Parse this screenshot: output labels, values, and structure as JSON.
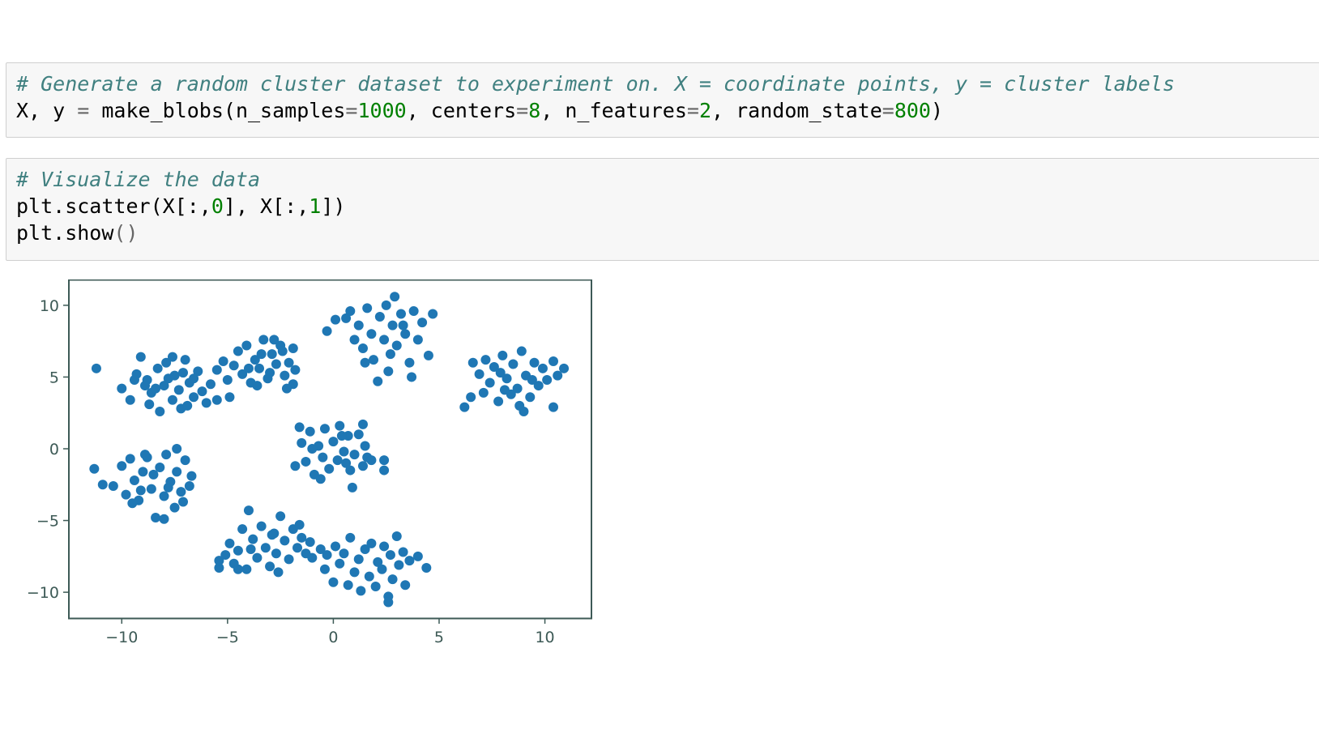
{
  "cells": [
    {
      "lines": [
        [
          {
            "t": "# Generate a random cluster dataset to experiment on. X = coordinate points, y = cluster labels",
            "c": "comment"
          }
        ],
        [
          {
            "t": "X, y ",
            "c": "kw"
          },
          {
            "t": "=",
            "c": "op"
          },
          {
            "t": " make_blobs(n_samples",
            "c": "kw"
          },
          {
            "t": "=",
            "c": "op"
          },
          {
            "t": "1000",
            "c": "num"
          },
          {
            "t": ", centers",
            "c": "kw"
          },
          {
            "t": "=",
            "c": "op"
          },
          {
            "t": "8",
            "c": "num"
          },
          {
            "t": ", n_features",
            "c": "kw"
          },
          {
            "t": "=",
            "c": "op"
          },
          {
            "t": "2",
            "c": "num"
          },
          {
            "t": ", random_state",
            "c": "kw"
          },
          {
            "t": "=",
            "c": "op"
          },
          {
            "t": "800",
            "c": "num"
          },
          {
            "t": ")",
            "c": "kw"
          }
        ]
      ]
    },
    {
      "lines": [
        [
          {
            "t": "# Visualize the data",
            "c": "comment"
          }
        ],
        [
          {
            "t": "plt.scatter(X[:,",
            "c": "kw"
          },
          {
            "t": "0",
            "c": "num"
          },
          {
            "t": "], X[:,",
            "c": "kw"
          },
          {
            "t": "1",
            "c": "num"
          },
          {
            "t": "])",
            "c": "kw"
          }
        ],
        [
          {
            "t": "plt.show",
            "c": "kw"
          },
          {
            "t": "()",
            "c": "op"
          }
        ]
      ]
    }
  ],
  "chart_data": {
    "type": "scatter",
    "xlim": [
      -12.5,
      12.2
    ],
    "ylim": [
      -11.8,
      11.8
    ],
    "xticks": [
      -10,
      -5,
      0,
      5,
      10
    ],
    "yticks": [
      10,
      5,
      0,
      -5,
      -10
    ],
    "xtick_labels": [
      "−10",
      "−5",
      "0",
      "5",
      "10"
    ],
    "ytick_labels": [
      "10",
      "5",
      "0",
      "−5",
      "−10"
    ],
    "marker_color": "#1f77b4",
    "grid": false,
    "series": [
      {
        "points": [
          [
            -11.2,
            5.6
          ],
          [
            -10.0,
            4.2
          ],
          [
            -9.6,
            3.4
          ],
          [
            -9.3,
            5.2
          ],
          [
            -9.1,
            6.4
          ],
          [
            -8.8,
            4.8
          ],
          [
            -8.6,
            3.9
          ],
          [
            -8.3,
            5.6
          ],
          [
            -8.2,
            2.6
          ],
          [
            -8.0,
            4.4
          ],
          [
            -7.9,
            6.0
          ],
          [
            -7.6,
            3.4
          ],
          [
            -7.5,
            5.1
          ],
          [
            -7.3,
            4.1
          ],
          [
            -7.2,
            2.8
          ],
          [
            -7.0,
            6.2
          ],
          [
            -6.8,
            4.6
          ],
          [
            -6.6,
            3.6
          ],
          [
            -6.4,
            5.4
          ],
          [
            -6.2,
            4.0
          ],
          [
            -6.0,
            3.2
          ],
          [
            -7.8,
            4.9
          ],
          [
            -8.9,
            4.4
          ],
          [
            -7.1,
            5.3
          ],
          [
            -6.6,
            4.9
          ],
          [
            -9.4,
            4.8
          ],
          [
            -8.4,
            4.2
          ],
          [
            -6.9,
            3.0
          ],
          [
            -7.6,
            6.4
          ],
          [
            -8.7,
            3.1
          ],
          [
            -5.8,
            4.5
          ],
          [
            -5.5,
            5.5
          ],
          [
            -5.2,
            6.1
          ],
          [
            -5.0,
            4.8
          ],
          [
            -4.7,
            5.8
          ],
          [
            -4.5,
            6.8
          ],
          [
            -4.3,
            5.2
          ],
          [
            -4.1,
            7.2
          ],
          [
            -3.9,
            4.6
          ],
          [
            -3.7,
            6.2
          ],
          [
            -3.5,
            5.6
          ],
          [
            -3.3,
            7.6
          ],
          [
            -3.1,
            4.9
          ],
          [
            -2.9,
            6.6
          ],
          [
            -2.7,
            5.9
          ],
          [
            -2.5,
            7.2
          ],
          [
            -2.3,
            5.1
          ],
          [
            -2.1,
            6.0
          ],
          [
            -1.9,
            4.5
          ],
          [
            -1.8,
            5.5
          ],
          [
            -2.2,
            4.2
          ],
          [
            -3.6,
            4.4
          ],
          [
            -4.9,
            3.6
          ],
          [
            -5.5,
            3.4
          ],
          [
            -2.4,
            6.8
          ],
          [
            -3.0,
            5.3
          ],
          [
            -4.0,
            5.6
          ],
          [
            -2.8,
            7.6
          ],
          [
            -1.9,
            7.0
          ],
          [
            -3.4,
            6.6
          ]
        ]
      },
      {
        "points": [
          [
            -11.3,
            -1.4
          ],
          [
            -10.9,
            -2.5
          ],
          [
            -10.4,
            -2.6
          ],
          [
            -10.0,
            -1.2
          ],
          [
            -9.8,
            -3.2
          ],
          [
            -9.6,
            -0.7
          ],
          [
            -9.4,
            -2.2
          ],
          [
            -9.2,
            -3.6
          ],
          [
            -9.0,
            -1.6
          ],
          [
            -8.8,
            -0.6
          ],
          [
            -8.6,
            -2.8
          ],
          [
            -8.4,
            -4.8
          ],
          [
            -8.2,
            -1.3
          ],
          [
            -8.0,
            -3.3
          ],
          [
            -7.9,
            -0.4
          ],
          [
            -7.7,
            -2.3
          ],
          [
            -7.5,
            -4.1
          ],
          [
            -7.4,
            -1.6
          ],
          [
            -7.2,
            -3.0
          ],
          [
            -7.0,
            -0.8
          ],
          [
            -6.8,
            -2.6
          ],
          [
            -6.7,
            -1.9
          ],
          [
            -7.4,
            0.0
          ],
          [
            -8.0,
            -4.9
          ],
          [
            -9.1,
            -2.9
          ],
          [
            -8.5,
            -1.8
          ],
          [
            -7.8,
            -2.7
          ],
          [
            -9.5,
            -3.8
          ],
          [
            -8.9,
            -0.4
          ],
          [
            -7.1,
            -3.7
          ]
        ]
      },
      {
        "points": [
          [
            -1.6,
            1.5
          ],
          [
            -1.8,
            -1.2
          ],
          [
            -1.5,
            0.4
          ],
          [
            -1.3,
            -0.9
          ],
          [
            -1.1,
            1.2
          ],
          [
            -0.9,
            -1.8
          ],
          [
            -0.7,
            0.2
          ],
          [
            -0.5,
            -0.6
          ],
          [
            -0.4,
            1.4
          ],
          [
            -0.2,
            -1.4
          ],
          [
            0.0,
            0.5
          ],
          [
            0.2,
            -0.8
          ],
          [
            0.3,
            1.6
          ],
          [
            0.5,
            -0.2
          ],
          [
            0.7,
            0.9
          ],
          [
            0.8,
            -1.5
          ],
          [
            1.0,
            -0.4
          ],
          [
            1.2,
            1.0
          ],
          [
            1.4,
            -1.2
          ],
          [
            1.5,
            0.2
          ],
          [
            1.6,
            -0.6
          ],
          [
            0.9,
            -2.7
          ],
          [
            2.4,
            -1.5
          ],
          [
            2.4,
            -0.8
          ],
          [
            1.4,
            1.7
          ],
          [
            -0.6,
            -2.1
          ],
          [
            0.4,
            0.9
          ],
          [
            -1.0,
            0.0
          ],
          [
            0.6,
            -1.0
          ],
          [
            1.8,
            -0.8
          ]
        ]
      },
      {
        "points": [
          [
            -0.3,
            8.2
          ],
          [
            0.1,
            9.0
          ],
          [
            0.6,
            9.1
          ],
          [
            0.8,
            9.6
          ],
          [
            1.0,
            7.6
          ],
          [
            1.2,
            8.6
          ],
          [
            1.4,
            7.0
          ],
          [
            1.6,
            9.8
          ],
          [
            1.8,
            8.0
          ],
          [
            1.9,
            6.2
          ],
          [
            2.1,
            4.7
          ],
          [
            2.2,
            9.2
          ],
          [
            2.4,
            7.6
          ],
          [
            2.5,
            10.0
          ],
          [
            2.7,
            6.6
          ],
          [
            2.8,
            8.6
          ],
          [
            2.9,
            10.6
          ],
          [
            3.0,
            7.2
          ],
          [
            3.2,
            9.4
          ],
          [
            3.4,
            8.0
          ],
          [
            3.6,
            6.0
          ],
          [
            3.7,
            5.0
          ],
          [
            3.8,
            9.6
          ],
          [
            4.0,
            7.6
          ],
          [
            4.2,
            8.8
          ],
          [
            4.5,
            6.5
          ],
          [
            4.7,
            9.4
          ],
          [
            2.6,
            5.4
          ],
          [
            3.3,
            8.6
          ],
          [
            1.5,
            6.0
          ]
        ]
      },
      {
        "points": [
          [
            6.2,
            2.9
          ],
          [
            6.5,
            3.6
          ],
          [
            6.6,
            6.0
          ],
          [
            6.9,
            5.2
          ],
          [
            7.1,
            3.9
          ],
          [
            7.2,
            6.2
          ],
          [
            7.4,
            4.6
          ],
          [
            7.6,
            5.7
          ],
          [
            7.8,
            3.3
          ],
          [
            8.0,
            6.5
          ],
          [
            8.2,
            4.9
          ],
          [
            8.4,
            3.8
          ],
          [
            8.5,
            5.9
          ],
          [
            8.7,
            4.2
          ],
          [
            8.9,
            6.8
          ],
          [
            9.0,
            2.6
          ],
          [
            9.1,
            5.1
          ],
          [
            9.3,
            3.6
          ],
          [
            9.5,
            6.0
          ],
          [
            9.7,
            4.4
          ],
          [
            9.9,
            5.6
          ],
          [
            10.1,
            4.8
          ],
          [
            10.4,
            6.1
          ],
          [
            10.6,
            5.1
          ],
          [
            10.9,
            5.6
          ],
          [
            10.4,
            2.9
          ],
          [
            8.1,
            4.1
          ],
          [
            9.4,
            4.8
          ],
          [
            7.9,
            5.3
          ],
          [
            8.8,
            3.0
          ]
        ]
      },
      {
        "points": [
          [
            -5.4,
            -8.3
          ],
          [
            -5.4,
            -7.8
          ],
          [
            -5.1,
            -7.4
          ],
          [
            -4.9,
            -6.6
          ],
          [
            -4.7,
            -8.0
          ],
          [
            -4.5,
            -7.1
          ],
          [
            -4.3,
            -5.6
          ],
          [
            -4.1,
            -8.4
          ],
          [
            -4.0,
            -4.3
          ],
          [
            -3.8,
            -6.3
          ],
          [
            -3.6,
            -7.6
          ],
          [
            -3.4,
            -5.4
          ],
          [
            -3.2,
            -6.9
          ],
          [
            -3.0,
            -8.2
          ],
          [
            -2.8,
            -5.9
          ],
          [
            -2.7,
            -7.3
          ],
          [
            -2.5,
            -4.7
          ],
          [
            -2.3,
            -6.4
          ],
          [
            -2.1,
            -7.7
          ],
          [
            -1.9,
            -5.6
          ],
          [
            -1.7,
            -6.9
          ],
          [
            -1.5,
            -6.2
          ],
          [
            -1.3,
            -7.3
          ],
          [
            -1.1,
            -6.5
          ],
          [
            -1.0,
            -7.6
          ],
          [
            -2.6,
            -8.6
          ],
          [
            -3.9,
            -7.0
          ],
          [
            -2.9,
            -6.0
          ],
          [
            -4.5,
            -8.4
          ],
          [
            -1.6,
            -5.3
          ]
        ]
      },
      {
        "points": [
          [
            -0.6,
            -7.0
          ],
          [
            -0.3,
            -7.4
          ],
          [
            -0.4,
            -8.4
          ],
          [
            0.0,
            -9.3
          ],
          [
            0.1,
            -6.8
          ],
          [
            0.3,
            -8.0
          ],
          [
            0.5,
            -7.3
          ],
          [
            0.7,
            -9.5
          ],
          [
            0.8,
            -6.2
          ],
          [
            1.0,
            -8.6
          ],
          [
            1.2,
            -7.7
          ],
          [
            1.3,
            -9.9
          ],
          [
            1.5,
            -7.0
          ],
          [
            1.7,
            -8.9
          ],
          [
            1.8,
            -6.6
          ],
          [
            2.0,
            -9.6
          ],
          [
            2.1,
            -7.9
          ],
          [
            2.3,
            -8.4
          ],
          [
            2.4,
            -6.8
          ],
          [
            2.6,
            -10.3
          ],
          [
            2.7,
            -7.4
          ],
          [
            2.8,
            -9.1
          ],
          [
            3.0,
            -6.1
          ],
          [
            3.1,
            -8.1
          ],
          [
            3.3,
            -7.2
          ],
          [
            3.4,
            -9.5
          ],
          [
            3.6,
            -7.8
          ],
          [
            4.0,
            -7.5
          ],
          [
            4.4,
            -8.3
          ],
          [
            2.6,
            -10.7
          ]
        ]
      }
    ]
  }
}
